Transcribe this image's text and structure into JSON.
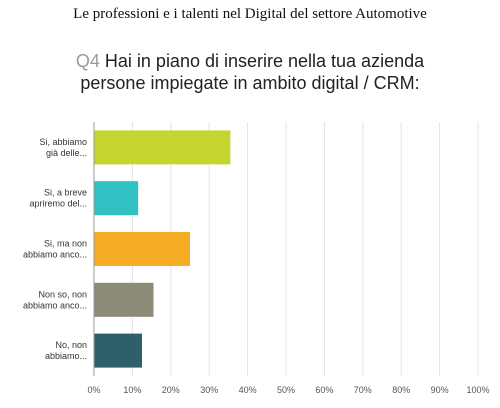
{
  "document": {
    "title": "Le professioni e i talenti nel Digital del settore Automotive"
  },
  "question": {
    "number": "Q4",
    "line1": "Hai in piano di inserire nella tua azienda",
    "line2": "persone impiegate in ambito digital / CRM:"
  },
  "chart_data": {
    "type": "bar",
    "orientation": "horizontal",
    "categories": [
      [
        "Si, abbiamo",
        "già delle..."
      ],
      [
        "Si, a breve",
        "apriremo del..."
      ],
      [
        "Si, ma non",
        "abbiamo anco..."
      ],
      [
        "Non so, non",
        "abbiamo anco..."
      ],
      [
        "No, non",
        "abbiamo..."
      ]
    ],
    "values": [
      35.5,
      11.5,
      25,
      15.5,
      12.5
    ],
    "colors": [
      "#c5d42e",
      "#32c1c3",
      "#f4ad25",
      "#8b8b78",
      "#2e5f6b"
    ],
    "xlim": [
      0,
      100
    ],
    "x_ticks": [
      "0%",
      "10%",
      "20%",
      "30%",
      "40%",
      "50%",
      "60%",
      "70%",
      "80%",
      "90%",
      "100%"
    ],
    "grid": true,
    "xlabel": "",
    "ylabel": ""
  }
}
